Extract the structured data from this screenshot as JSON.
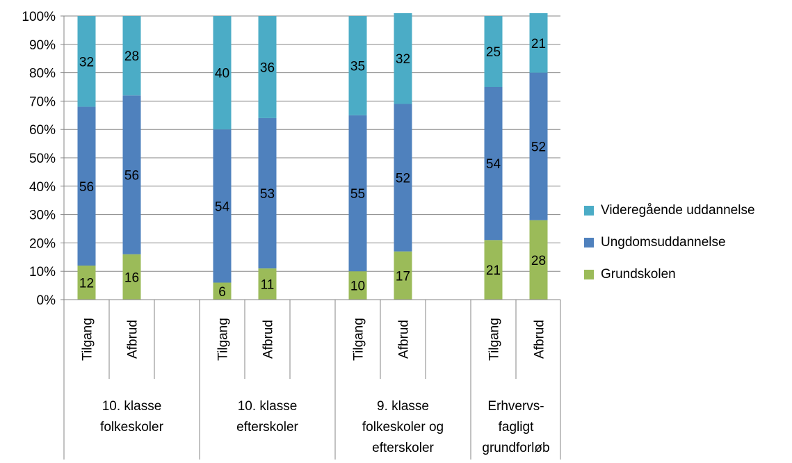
{
  "chart_data": {
    "type": "bar",
    "stacked": true,
    "percent_stacked": true,
    "title": "",
    "xlabel": "",
    "ylabel": "",
    "ylim": [
      0,
      100
    ],
    "yticks": [
      "0%",
      "10%",
      "20%",
      "30%",
      "40%",
      "50%",
      "60%",
      "70%",
      "80%",
      "90%",
      "100%"
    ],
    "grid": true,
    "legend_position": "right",
    "groups": [
      {
        "label": "10. klasse folkeskoler",
        "lines": [
          "10. klasse",
          "folkeskoler"
        ],
        "categories": [
          "Tilgang",
          "Afbrud"
        ]
      },
      {
        "label": "10. klasse efterskoler",
        "lines": [
          "10. klasse",
          "efterskoler"
        ],
        "categories": [
          "Tilgang",
          "Afbrud"
        ]
      },
      {
        "label": "9. klasse folkeskoler og efterskoler",
        "lines": [
          "9. klasse",
          "folkeskoler og",
          "efterskoler"
        ],
        "categories": [
          "Tilgang",
          "Afbrud"
        ]
      },
      {
        "label": "Erhvervsfagligt grundforløb",
        "lines": [
          "Erhvervs-",
          "fagligt",
          "grundforløb"
        ],
        "categories": [
          "Tilgang",
          "Afbrud"
        ]
      }
    ],
    "series": [
      {
        "name": "Grundskolen",
        "color": "#9BBB59",
        "values": [
          12,
          16,
          6,
          11,
          10,
          17,
          21,
          28
        ]
      },
      {
        "name": "Ungdomsuddannelse",
        "color": "#4F81BD",
        "values": [
          56,
          56,
          54,
          53,
          55,
          52,
          54,
          52
        ]
      },
      {
        "name": "Videregående uddannelse",
        "color": "#4BACC6",
        "values": [
          32,
          28,
          40,
          36,
          35,
          32,
          25,
          21
        ]
      }
    ]
  }
}
